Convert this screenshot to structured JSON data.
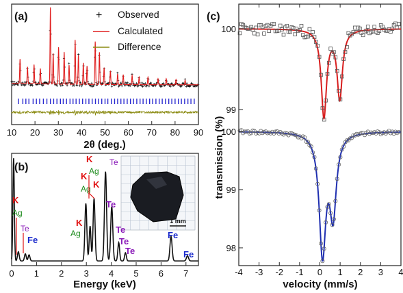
{
  "colors": {
    "observed": "#111111",
    "calculated": "#e02020",
    "difference": "#8a8a10",
    "bragg": "#2a2ad0",
    "edx": "#111111",
    "moss_top": "#d81e1e",
    "moss_bottom": "#1f2fb0",
    "ann_k": "#e01010",
    "ann_ag": "#1a8a1a",
    "ann_te": "#8a1ab8",
    "ann_fe": "#1a2acc"
  },
  "panel_a": {
    "label": "(a)",
    "legend": {
      "observed": "Observed",
      "calculated": "Calculated",
      "difference": "Difference"
    },
    "xlabel": "2θ (deg.)",
    "xticks": [
      "10",
      "20",
      "30",
      "40",
      "50",
      "60",
      "70",
      "80",
      "90"
    ]
  },
  "panel_b": {
    "label": "(b)",
    "xlabel": "Energy (keV)",
    "xticks": [
      "0",
      "1",
      "2",
      "3",
      "4",
      "5",
      "6",
      "7"
    ],
    "scale_bar": "1 mm",
    "annotations": [
      {
        "text": "K",
        "el": "k"
      },
      {
        "text": "Ag",
        "el": "ag"
      },
      {
        "text": "Te",
        "el": "te"
      },
      {
        "text": "Fe",
        "el": "fe"
      },
      {
        "text": "K",
        "el": "k"
      },
      {
        "text": "Ag",
        "el": "ag"
      },
      {
        "text": "K",
        "el": "k"
      },
      {
        "text": "Ag",
        "el": "ag"
      },
      {
        "text": "K",
        "el": "k"
      },
      {
        "text": "Ag",
        "el": "ag"
      },
      {
        "text": "K",
        "el": "k"
      },
      {
        "text": "Te",
        "el": "te"
      },
      {
        "text": "Te",
        "el": "te"
      },
      {
        "text": "Te",
        "el": "te"
      },
      {
        "text": "Te",
        "el": "te"
      },
      {
        "text": "Te",
        "el": "te"
      },
      {
        "text": "Fe",
        "el": "fe"
      },
      {
        "text": "Fe",
        "el": "fe"
      }
    ]
  },
  "panel_c": {
    "label": "(c)",
    "xlabel": "velocity (mm/s)",
    "ylabel": "transmission (%)",
    "xticks": [
      "-4",
      "-3",
      "-2",
      "-1",
      "0",
      "1",
      "2",
      "3",
      "4"
    ],
    "yticks_top": [
      "100",
      "99"
    ],
    "yticks_bottom": [
      "100",
      "99",
      "98"
    ]
  },
  "chart_data": [
    {
      "type": "line",
      "panel": "a",
      "xlabel": "2θ (deg.)",
      "xlim": [
        10,
        90
      ],
      "series": [
        {
          "name": "Observed"
        },
        {
          "name": "Calculated"
        },
        {
          "name": "Difference"
        }
      ],
      "peaks": [
        {
          "x": 13.6,
          "y": 0.32
        },
        {
          "x": 16.8,
          "y": 0.22
        },
        {
          "x": 19.6,
          "y": 0.25
        },
        {
          "x": 22.3,
          "y": 0.2
        },
        {
          "x": 26.6,
          "y": 1.0
        },
        {
          "x": 27.8,
          "y": 0.4
        },
        {
          "x": 30.1,
          "y": 0.48
        },
        {
          "x": 32.5,
          "y": 0.42
        },
        {
          "x": 34.6,
          "y": 0.25
        },
        {
          "x": 37.2,
          "y": 0.58
        },
        {
          "x": 38.6,
          "y": 0.38
        },
        {
          "x": 40.7,
          "y": 0.28
        },
        {
          "x": 42.3,
          "y": 0.24
        },
        {
          "x": 45.8,
          "y": 0.56
        },
        {
          "x": 47.6,
          "y": 0.42
        },
        {
          "x": 49.6,
          "y": 0.22
        },
        {
          "x": 52.3,
          "y": 0.18
        },
        {
          "x": 55.4,
          "y": 0.14
        },
        {
          "x": 57.8,
          "y": 0.13
        },
        {
          "x": 61.6,
          "y": 0.12
        },
        {
          "x": 64.6,
          "y": 0.1
        },
        {
          "x": 68.4,
          "y": 0.1
        },
        {
          "x": 72.7,
          "y": 0.08
        },
        {
          "x": 76.2,
          "y": 0.08
        },
        {
          "x": 80.4,
          "y": 0.07
        },
        {
          "x": 84.3,
          "y": 0.06
        }
      ],
      "bragg_ticks": [
        12.9,
        14.8,
        16.1,
        17.4,
        19.2,
        20.6,
        22.0,
        23.6,
        25.1,
        26.6,
        28.0,
        29.4,
        30.9,
        32.1,
        33.5,
        35.0,
        36.3,
        37.6,
        39.0,
        40.4,
        41.8,
        43.1,
        44.5,
        45.9,
        47.2,
        48.6,
        50.0,
        51.2,
        52.7,
        54.1,
        55.4,
        56.8,
        58.1,
        59.5,
        60.9,
        62.2,
        63.6,
        65.0,
        66.3,
        67.7,
        69.1,
        70.4,
        71.8,
        73.2,
        74.5,
        75.9,
        77.3,
        78.6,
        80.0,
        81.4,
        82.7,
        84.1,
        85.5,
        86.8,
        88.2
      ]
    },
    {
      "type": "line",
      "panel": "b",
      "xlabel": "Energy (keV)",
      "xlim": [
        0,
        7.5
      ],
      "peaks": [
        {
          "x": 0.08,
          "y": 1.0,
          "w": 0.04
        },
        {
          "x": 0.27,
          "y": 0.09,
          "w": 0.05
        },
        {
          "x": 0.55,
          "y": 0.07,
          "w": 0.05
        },
        {
          "x": 0.7,
          "y": 0.06,
          "w": 0.05
        },
        {
          "x": 2.98,
          "y": 0.56,
          "w": 0.055
        },
        {
          "x": 3.15,
          "y": 0.34,
          "w": 0.05
        },
        {
          "x": 3.31,
          "y": 0.61,
          "w": 0.055
        },
        {
          "x": 3.77,
          "y": 0.87,
          "w": 0.06
        },
        {
          "x": 4.02,
          "y": 0.53,
          "w": 0.06
        },
        {
          "x": 4.3,
          "y": 0.18,
          "w": 0.05
        },
        {
          "x": 4.57,
          "y": 0.08,
          "w": 0.05
        },
        {
          "x": 6.4,
          "y": 0.24,
          "w": 0.06
        },
        {
          "x": 7.06,
          "y": 0.05,
          "w": 0.06
        }
      ]
    },
    {
      "type": "scatter",
      "panel": "c",
      "xlabel": "velocity (mm/s)",
      "ylabel": "transmission (%)",
      "xlim": [
        -4,
        4
      ],
      "series": [
        {
          "baseline": 100.0,
          "ylim": [
            98.8,
            100.25
          ],
          "dips": [
            {
              "center": 0.2,
              "depth": 1.08,
              "width": 0.16
            },
            {
              "center": 0.98,
              "depth": 0.85,
              "width": 0.16
            }
          ],
          "marker": "square"
        },
        {
          "baseline": 100.0,
          "ylim": [
            97.8,
            100.2
          ],
          "dips": [
            {
              "center": 0.13,
              "depth": 2.05,
              "width": 0.2
            },
            {
              "center": 0.65,
              "depth": 1.35,
              "width": 0.2
            }
          ],
          "marker": "circle"
        }
      ]
    }
  ]
}
